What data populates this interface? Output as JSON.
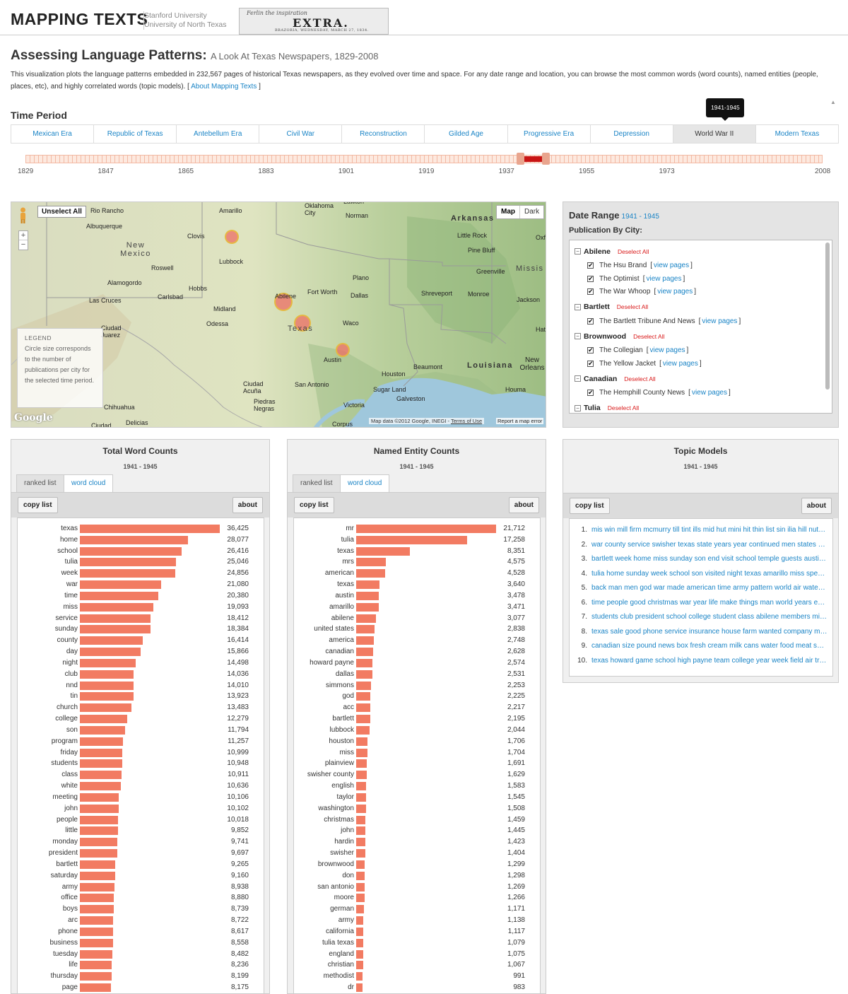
{
  "header": {
    "brand": "MAPPING TEXTS",
    "institution_1": "Stanford University",
    "institution_2": "University of North Texas",
    "clip_script": "Ferlin the inspiration",
    "clip_headline": "EXTRA.",
    "clip_dateline": "BRAZORIA, WEDNESDAY, MARCH 27, 1834."
  },
  "intro": {
    "title": "Assessing Language Patterns:",
    "subtitle": "A Look At Texas Newspapers, 1829-2008",
    "text_before": "This visualization plots the language patterns embedded in 232,567 pages of historical Texas newspapers, as they evolved over time and space. For any date range and location, you can browse the most common words (word counts), named entities (people, places, etc), and highly correlated words (topic models). [ ",
    "link": "About Mapping Texts",
    "text_after": " ]"
  },
  "time_period": {
    "title": "Time Period",
    "tooltip": "1941-1945",
    "eras": [
      "Mexican Era",
      "Republic of Texas",
      "Antebellum Era",
      "Civil War",
      "Reconstruction",
      "Gilded Age",
      "Progressive Era",
      "Depression",
      "World War II",
      "Modern Texas"
    ],
    "active_era": "World War II",
    "slider_labels": [
      "1829",
      "1847",
      "1865",
      "1883",
      "1901",
      "1919",
      "1937",
      "1955",
      "1973",
      "2008"
    ],
    "range_start": 1941,
    "range_end": 1945,
    "slider_min": 1829,
    "slider_max": 2008
  },
  "map": {
    "unselect_all": "Unselect All",
    "zoom_in": "+",
    "zoom_out": "−",
    "type_map": "Map",
    "type_dark": "Dark",
    "legend_title": "LEGEND",
    "legend_text": "Circle size corresponds to the number of publications per city for the selected time period.",
    "google": "Google",
    "attribution_prefix": "Map data ©2012 Google, INEGI - ",
    "attribution_link": "Terms of Use",
    "report": "Report a map error",
    "labels": [
      "Oklahoma City",
      "Norman",
      "Rio Rancho",
      "Albuquerque",
      "Amarillo",
      "Clovis",
      "Lubbock",
      "Roswell",
      "Alamogordo",
      "Hobbs",
      "Carlsbad",
      "Las Cruces",
      "Midland",
      "Odessa",
      "Ciudad Juarez",
      "Abilene",
      "Fort Worth",
      "Plano",
      "Dallas",
      "Waco",
      "Texas",
      "Austin",
      "San Antonio",
      "Houston",
      "Sugar Land",
      "Galveston",
      "Beaumont",
      "Ciudad Acuña",
      "Piedras Negras",
      "Victoria",
      "Corpus",
      "Chihuahua",
      "Ciudad",
      "Delicias",
      "Arkansas",
      "Little Rock",
      "Pine Bluff",
      "Greenville",
      "Shreveport",
      "Monroe",
      "Jackson",
      "Louisiana",
      "New Orleans",
      "Houma",
      "New Mexico",
      "Missis",
      "Hat",
      "Oxf",
      "Lawton"
    ]
  },
  "date_range": {
    "title": "Date Range",
    "years": "1941 - 1945",
    "subtitle": "Publication By City:",
    "deselect_label": "Deselect All",
    "view_label": "view pages",
    "cities": [
      {
        "name": "Abilene",
        "papers": [
          "The Hsu Brand",
          "The Optimist",
          "The War Whoop"
        ]
      },
      {
        "name": "Bartlett",
        "papers": [
          "The Bartlett Tribune And News"
        ]
      },
      {
        "name": "Brownwood",
        "papers": [
          "The Collegian",
          "The Yellow Jacket"
        ]
      },
      {
        "name": "Canadian",
        "papers": [
          "The Hemphill County News"
        ]
      },
      {
        "name": "Tulia",
        "papers": []
      }
    ]
  },
  "panels": {
    "tab_ranked": "ranked list",
    "tab_cloud": "word cloud",
    "copy_list": "copy list",
    "about": "about",
    "years": "1941 - 1945",
    "word_counts": {
      "title": "Total Word Counts",
      "max": 36425,
      "items": [
        [
          "texas",
          36425,
          "36,425"
        ],
        [
          "home",
          28077,
          "28,077"
        ],
        [
          "school",
          26416,
          "26,416"
        ],
        [
          "tulia",
          25046,
          "25,046"
        ],
        [
          "week",
          24856,
          "24,856"
        ],
        [
          "war",
          21080,
          "21,080"
        ],
        [
          "time",
          20380,
          "20,380"
        ],
        [
          "miss",
          19093,
          "19,093"
        ],
        [
          "service",
          18412,
          "18,412"
        ],
        [
          "sunday",
          18384,
          "18,384"
        ],
        [
          "county",
          16414,
          "16,414"
        ],
        [
          "day",
          15866,
          "15,866"
        ],
        [
          "night",
          14498,
          "14,498"
        ],
        [
          "club",
          14036,
          "14,036"
        ],
        [
          "nnd",
          14010,
          "14,010"
        ],
        [
          "tin",
          13923,
          "13,923"
        ],
        [
          "church",
          13483,
          "13,483"
        ],
        [
          "college",
          12279,
          "12,279"
        ],
        [
          "son",
          11794,
          "11,794"
        ],
        [
          "program",
          11257,
          "11,257"
        ],
        [
          "friday",
          10999,
          "10,999"
        ],
        [
          "students",
          10948,
          "10,948"
        ],
        [
          "class",
          10911,
          "10,911"
        ],
        [
          "white",
          10636,
          "10,636"
        ],
        [
          "meeting",
          10106,
          "10,106"
        ],
        [
          "john",
          10102,
          "10,102"
        ],
        [
          "people",
          10018,
          "10,018"
        ],
        [
          "little",
          9852,
          "9,852"
        ],
        [
          "monday",
          9741,
          "9,741"
        ],
        [
          "president",
          9697,
          "9,697"
        ],
        [
          "bartlett",
          9265,
          "9,265"
        ],
        [
          "saturday",
          9160,
          "9,160"
        ],
        [
          "army",
          8938,
          "8,938"
        ],
        [
          "office",
          8880,
          "8,880"
        ],
        [
          "boys",
          8739,
          "8,739"
        ],
        [
          "arc",
          8722,
          "8,722"
        ],
        [
          "phone",
          8617,
          "8,617"
        ],
        [
          "business",
          8558,
          "8,558"
        ],
        [
          "tuesday",
          8482,
          "8,482"
        ],
        [
          "life",
          8236,
          "8,236"
        ],
        [
          "thursday",
          8199,
          "8,199"
        ],
        [
          "page",
          8175,
          "8,175"
        ]
      ]
    },
    "named_entities": {
      "title": "Named Entity Counts",
      "max": 21712,
      "items": [
        [
          "mr",
          21712,
          "21,712"
        ],
        [
          "tulia",
          17258,
          "17,258"
        ],
        [
          "texas",
          8351,
          "8,351"
        ],
        [
          "mrs",
          4575,
          "4,575"
        ],
        [
          "american",
          4528,
          "4,528"
        ],
        [
          "texas",
          3640,
          "3,640"
        ],
        [
          "austin",
          3478,
          "3,478"
        ],
        [
          "amarillo",
          3471,
          "3,471"
        ],
        [
          "abilene",
          3077,
          "3,077"
        ],
        [
          "united states",
          2838,
          "2,838"
        ],
        [
          "america",
          2748,
          "2,748"
        ],
        [
          "canadian",
          2628,
          "2,628"
        ],
        [
          "howard payne",
          2574,
          "2,574"
        ],
        [
          "dallas",
          2531,
          "2,531"
        ],
        [
          "simmons",
          2253,
          "2,253"
        ],
        [
          "god",
          2225,
          "2,225"
        ],
        [
          "acc",
          2217,
          "2,217"
        ],
        [
          "bartlett",
          2195,
          "2,195"
        ],
        [
          "lubbock",
          2044,
          "2,044"
        ],
        [
          "houston",
          1706,
          "1,706"
        ],
        [
          "miss",
          1704,
          "1,704"
        ],
        [
          "plainview",
          1691,
          "1,691"
        ],
        [
          "swisher county",
          1629,
          "1,629"
        ],
        [
          "english",
          1583,
          "1,583"
        ],
        [
          "taylor",
          1545,
          "1,545"
        ],
        [
          "washington",
          1508,
          "1,508"
        ],
        [
          "christmas",
          1459,
          "1,459"
        ],
        [
          "john",
          1445,
          "1,445"
        ],
        [
          "hardin",
          1423,
          "1,423"
        ],
        [
          "swisher",
          1404,
          "1,404"
        ],
        [
          "brownwood",
          1299,
          "1,299"
        ],
        [
          "don",
          1298,
          "1,298"
        ],
        [
          "san antonio",
          1269,
          "1,269"
        ],
        [
          "moore",
          1266,
          "1,266"
        ],
        [
          "german",
          1171,
          "1,171"
        ],
        [
          "army",
          1138,
          "1,138"
        ],
        [
          "california",
          1117,
          "1,117"
        ],
        [
          "tulia texas",
          1079,
          "1,079"
        ],
        [
          "england",
          1075,
          "1,075"
        ],
        [
          "christian",
          1067,
          "1,067"
        ],
        [
          "methodist",
          991,
          "991"
        ],
        [
          "dr",
          983,
          "983"
        ]
      ]
    },
    "topics": {
      "title": "Topic Models",
      "items": [
        "mis win mill firm mcmurry till tint ills mid hut mini hit thin list sin ilia hill nut…",
        "war county service swisher texas state years year continued men states uni…",
        "bartlett week home miss sunday son end visit school temple guests austin …",
        "tulia home sunday week school son visited night texas amarillo miss spent …",
        "back man men god war made american time army pattern world air water l…",
        "time people good christmas war year life make things man world years edi…",
        "students club president school college student class abilene members miss…",
        "texas sale good phone service insurance house farm wanted company mil…",
        "canadian size pound news box fresh cream milk cans water food meat sug…",
        "texas howard game school high payne team college year week field air trai…"
      ]
    }
  },
  "colors": {
    "accent": "#1a84c6",
    "bar": "#f27b62",
    "deselect": "#d91a1a",
    "range": "#c91414"
  }
}
